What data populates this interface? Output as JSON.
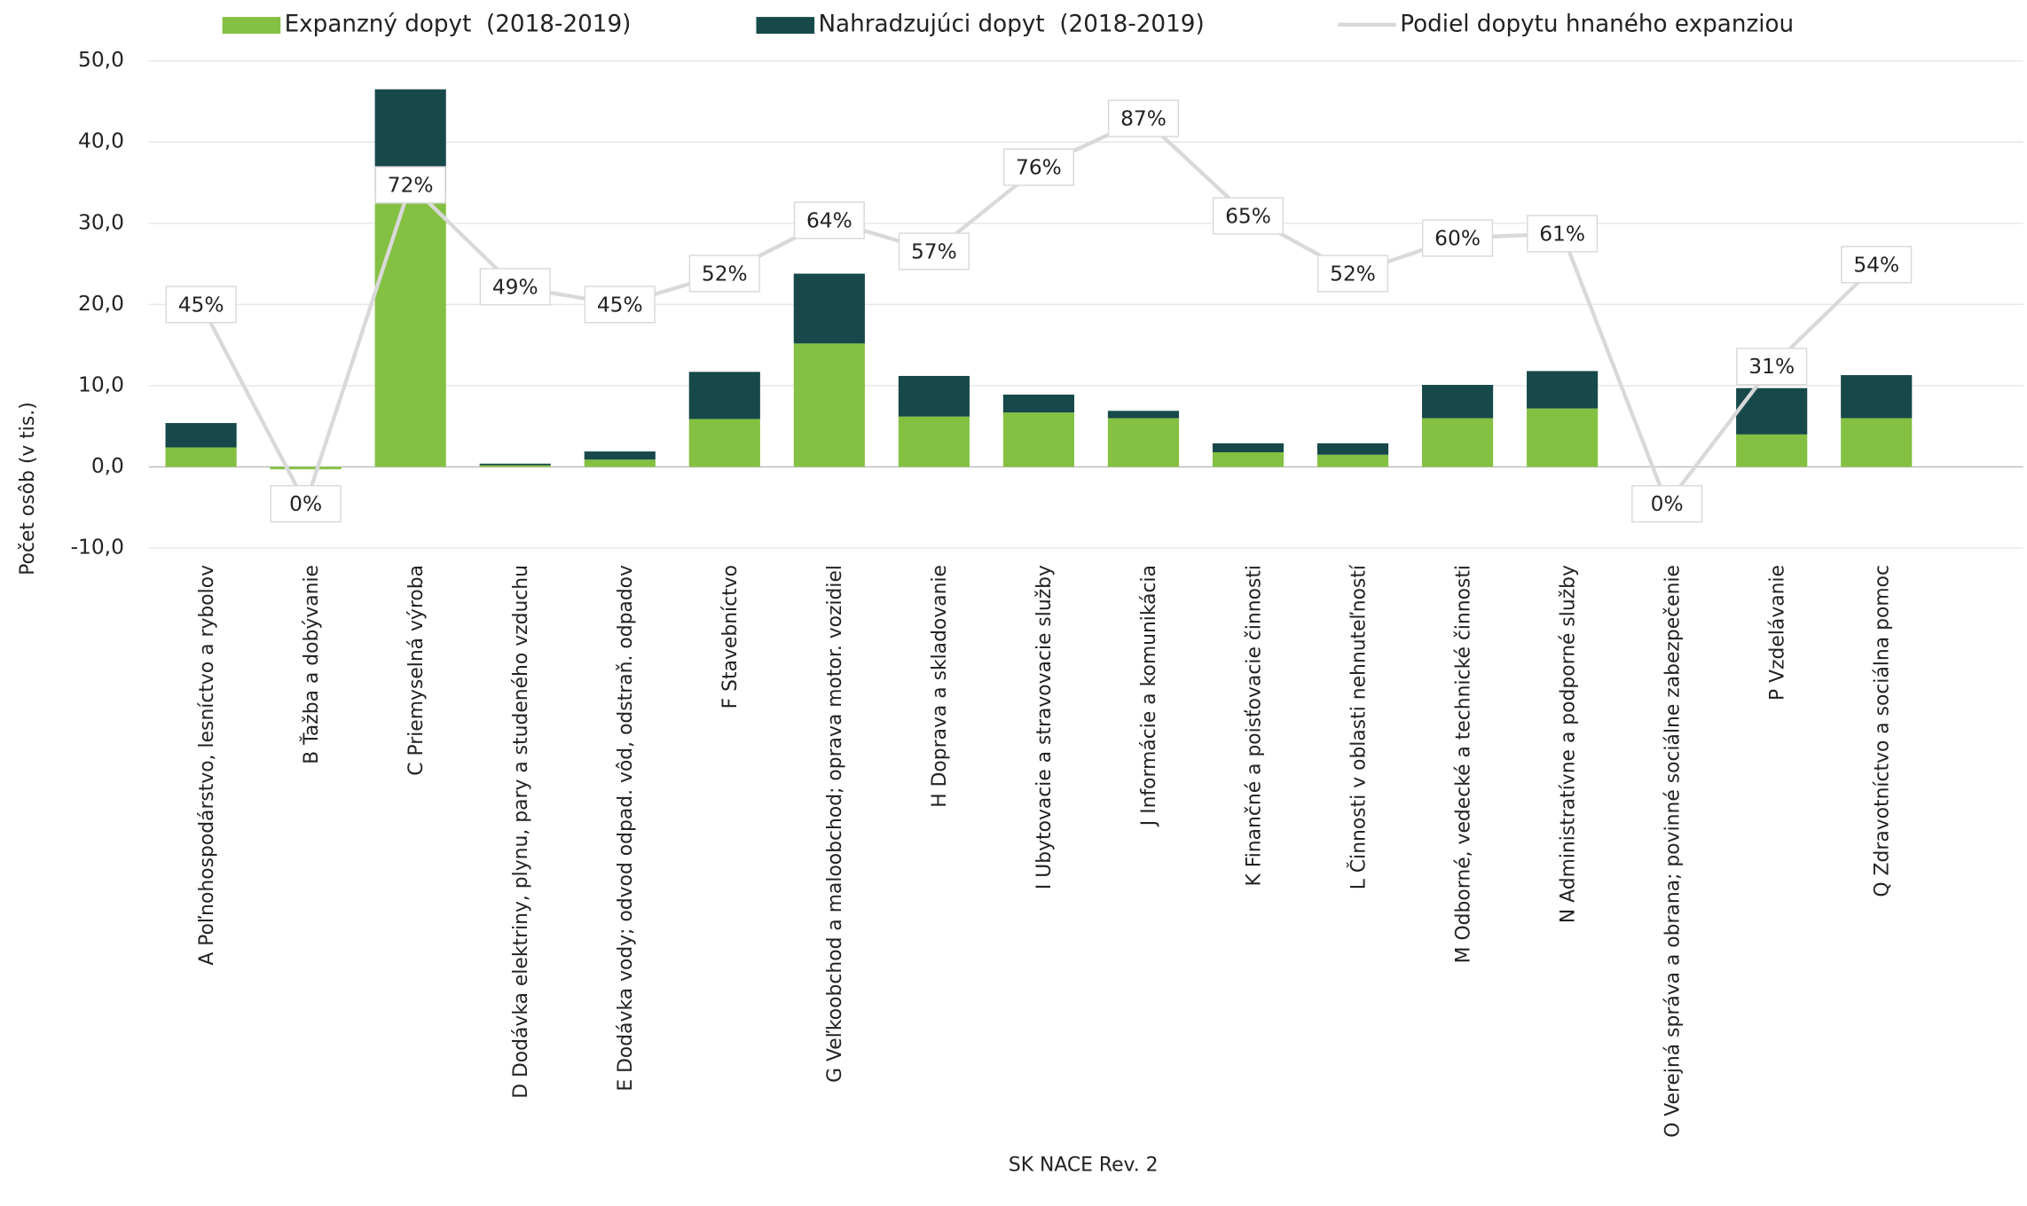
{
  "chart_data": {
    "type": "bar",
    "stacked": true,
    "categories": [
      "A Poľnohospodárstvo, lesníctvo a rybolov",
      "B Ťažba a dobývanie",
      "C Priemyselná výroba",
      "D Dodávka elektriny, plynu, pary a studeného vzduchu",
      "E Dodávka vody; odvod odpad. vôd, odstraň. odpadov",
      "F Stavebníctvo",
      "G Veľkoobchod a maloobchod; oprava motor. vozidiel",
      "H Doprava a skladovanie",
      "I Ubytovacie a stravovacie služby",
      "J Informácie a komunikácia",
      "K Finančné a poisťovacie činnosti",
      "L Činnosti v oblasti nehnuteľností",
      "M Odborné, vedecké a technické činnosti",
      "N Administratívne a podporné služby",
      "O Verejná správa a obrana; povinné sociálne zabezpečenie",
      "P Vzdelávanie",
      "Q Zdravotníctvo a sociálna pomoc"
    ],
    "series": [
      {
        "name": "Expanzný dopyt  (2018-2019)",
        "type": "bar",
        "color": "#84c041",
        "values": [
          2.4,
          -0.3,
          33.5,
          0.2,
          0.9,
          5.9,
          15.2,
          6.2,
          6.7,
          6.0,
          1.8,
          1.5,
          6.0,
          7.2,
          0,
          4.0,
          6.0
        ]
      },
      {
        "name": "Nahradzujúci dopyt  (2018-2019)",
        "type": "bar",
        "color": "#17494a",
        "values": [
          3.0,
          0,
          13.0,
          0.2,
          1.0,
          5.8,
          8.6,
          5.0,
          2.2,
          0.9,
          1.1,
          1.4,
          4.1,
          4.6,
          0,
          5.7,
          5.3
        ]
      },
      {
        "name": "Podiel dopytu hnaného expanziou",
        "type": "line",
        "axis": "y2",
        "color": "#d9d9d9",
        "values": [
          45,
          0,
          72,
          49,
          45,
          52,
          64,
          57,
          76,
          87,
          65,
          52,
          60,
          61,
          0,
          31,
          54
        ],
        "value_labels": [
          "45%",
          "0%",
          "72%",
          "49%",
          "45%",
          "52%",
          "64%",
          "57%",
          "76%",
          "87%",
          "65%",
          "52%",
          "60%",
          "61%",
          "0%",
          "31%",
          "54%"
        ]
      }
    ],
    "ylim": [
      -10,
      50
    ],
    "yticks": [
      {
        "value": -10,
        "label": "-10,0"
      },
      {
        "value": 0,
        "label": "0,0"
      },
      {
        "value": 10,
        "label": "10,0"
      },
      {
        "value": 20,
        "label": "20,0"
      },
      {
        "value": 30,
        "label": "30,0"
      },
      {
        "value": 40,
        "label": "40,0"
      },
      {
        "value": 50,
        "label": "50,0"
      }
    ],
    "y2lim": [
      -10,
      100
    ],
    "ylabel": "Počet osôb (v tis.)",
    "xlabel": "SK NACE  Rev. 2",
    "grid": true,
    "legend": "top"
  }
}
